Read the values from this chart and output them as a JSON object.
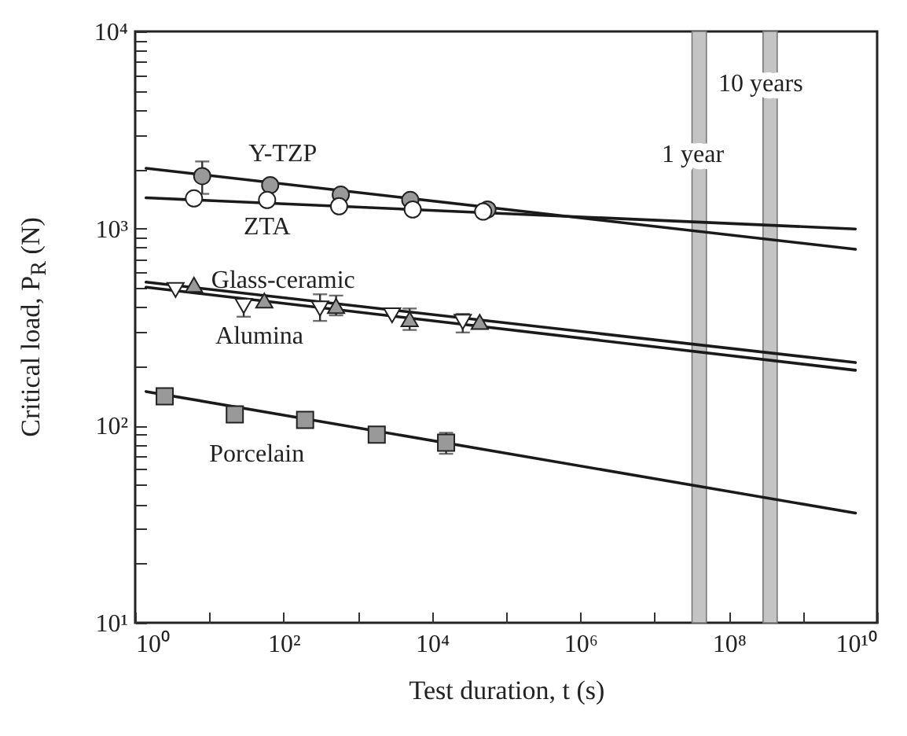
{
  "chart_data": {
    "type": "scatter",
    "xlabel": "Test duration, t (s)",
    "ylabel": "Critical load, P$_{R}$ (N)",
    "log": "xy",
    "grid": false,
    "xlim": [
      1,
      10000000000
    ],
    "ylim": [
      10,
      10000
    ],
    "xticks": [
      {
        "value": 1,
        "label": "10⁰"
      },
      {
        "value": 10,
        "label": null
      },
      {
        "value": 100,
        "label": "10²"
      },
      {
        "value": 1000,
        "label": null
      },
      {
        "value": 10000,
        "label": "10⁴"
      },
      {
        "value": 100000,
        "label": null
      },
      {
        "value": 1000000,
        "label": "10⁶"
      },
      {
        "value": 10000000,
        "label": null
      },
      {
        "value": 100000000,
        "label": "10⁸"
      },
      {
        "value": 1000000000,
        "label": null
      },
      {
        "value": 10000000000,
        "label": "10¹⁰"
      }
    ],
    "yticks": [
      {
        "value": 10,
        "label": "10¹"
      },
      {
        "value": 20,
        "label": null
      },
      {
        "value": 30,
        "label": null
      },
      {
        "value": 40,
        "label": null
      },
      {
        "value": 50,
        "label": null
      },
      {
        "value": 60,
        "label": null
      },
      {
        "value": 70,
        "label": null
      },
      {
        "value": 80,
        "label": null
      },
      {
        "value": 90,
        "label": null
      },
      {
        "value": 100,
        "label": "10²"
      },
      {
        "value": 200,
        "label": null
      },
      {
        "value": 300,
        "label": null
      },
      {
        "value": 400,
        "label": null
      },
      {
        "value": 500,
        "label": null
      },
      {
        "value": 600,
        "label": null
      },
      {
        "value": 700,
        "label": null
      },
      {
        "value": 800,
        "label": null
      },
      {
        "value": 900,
        "label": null
      },
      {
        "value": 1000,
        "label": "10³"
      },
      {
        "value": 2000,
        "label": null
      },
      {
        "value": 3000,
        "label": null
      },
      {
        "value": 4000,
        "label": null
      },
      {
        "value": 5000,
        "label": null
      },
      {
        "value": 6000,
        "label": null
      },
      {
        "value": 7000,
        "label": null
      },
      {
        "value": 8000,
        "label": null
      },
      {
        "value": 9000,
        "label": null
      },
      {
        "value": 10000,
        "label": "10⁴"
      }
    ],
    "bands": [
      {
        "axis": "x",
        "from": 32000000,
        "to": 50000000,
        "label": "1 year",
        "color": "#c4c4c4"
      },
      {
        "axis": "x",
        "from": 290000000,
        "to": 450000000,
        "label": "10 years",
        "color": "#c4c4c4"
      }
    ],
    "series": [
      {
        "name": "Y-TZP",
        "type": "scatter",
        "marker": "circle",
        "color": "#999999",
        "x": [
          8,
          66,
          590,
          5100,
          56000
        ],
        "values": [
          1845,
          1660,
          1486,
          1397,
          1250
        ],
        "errors": [
          [
            1500,
            2190
          ],
          null,
          null,
          null,
          null
        ]
      },
      {
        "name": "ZTA",
        "type": "scatter",
        "marker": "circle",
        "color": "#ffffff",
        "x": [
          6.2,
          60,
          560,
          5500,
          49000
        ],
        "values": [
          1423,
          1397,
          1297,
          1250,
          1219
        ]
      },
      {
        "name": "Glass-ceramic",
        "type": "scatter",
        "marker": "triangle",
        "color": "#999999",
        "x": [
          6.2,
          55,
          510,
          5000,
          44000
        ],
        "values": [
          519,
          431,
          405,
          347,
          336
        ],
        "errors": [
          null,
          null,
          [
            363,
            457
          ],
          [
            306,
            393
          ],
          null
        ]
      },
      {
        "name": "Alumina",
        "type": "scatter",
        "marker": "triangle-down",
        "color": "#ffffff",
        "x": [
          3.5,
          29,
          310,
          2900,
          26000
        ],
        "values": [
          488,
          405,
          393,
          363,
          336
        ],
        "errors": [
          null,
          [
            357,
            431
          ],
          [
            340,
            464
          ],
          null,
          [
            297,
            369
          ]
        ]
      },
      {
        "name": "Porcelain",
        "type": "scatter",
        "marker": "square",
        "color": "#999999",
        "x": [
          2.5,
          22,
          195,
          1800,
          15500
        ],
        "values": [
          141,
          114,
          107,
          90,
          82
        ],
        "errors": [
          null,
          null,
          null,
          null,
          [
            72,
            92
          ]
        ]
      },
      {
        "type": "line",
        "color": "#1a1a1a",
        "x": [
          1.4,
          5100000000
        ],
        "values": [
          2023,
          785
        ]
      },
      {
        "type": "line",
        "color": "#1a1a1a",
        "x": [
          1.4,
          5100000000
        ],
        "values": [
          1432,
          995
        ]
      },
      {
        "type": "line",
        "color": "#1a1a1a",
        "x": [
          1.4,
          5100000000
        ],
        "values": [
          535,
          209
        ]
      },
      {
        "type": "line",
        "color": "#1a1a1a",
        "x": [
          1.4,
          5100000000
        ],
        "values": [
          504,
          191
        ]
      },
      {
        "type": "line",
        "color": "#1a1a1a",
        "x": [
          1.4,
          5100000000
        ],
        "values": [
          149,
          36
        ]
      }
    ]
  }
}
